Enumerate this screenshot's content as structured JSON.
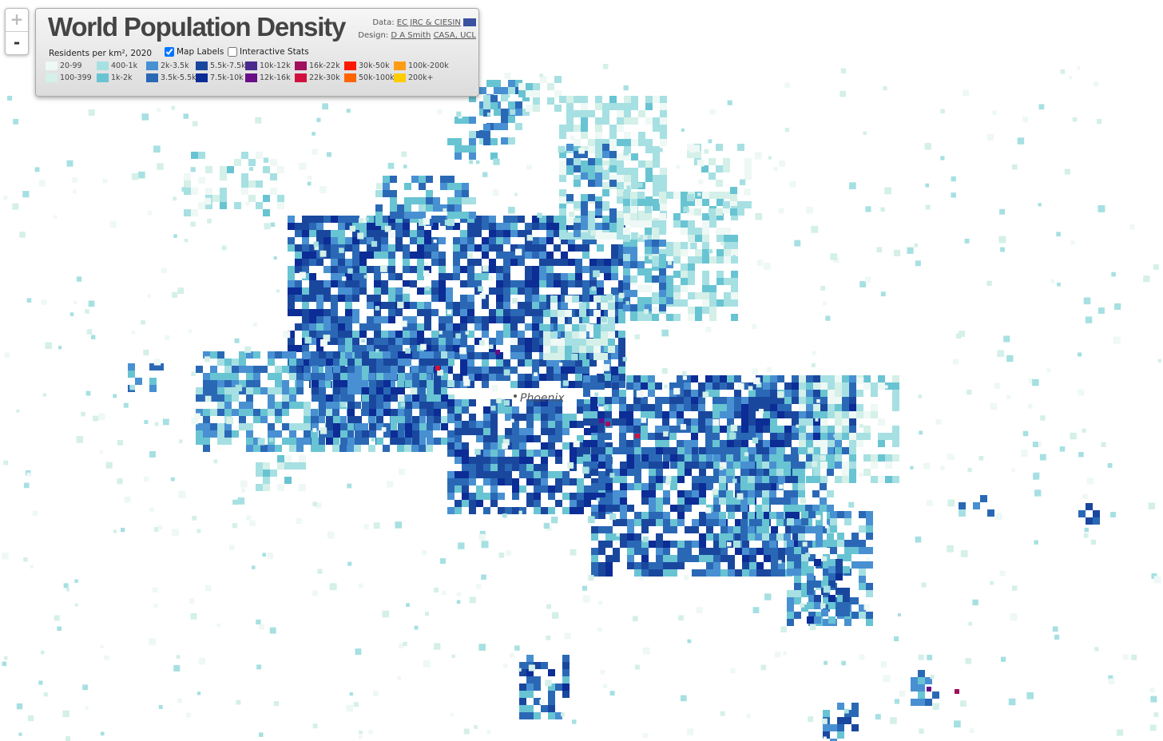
{
  "header": {
    "title": "World Population Density",
    "data_label": "Data:",
    "data_source": "EC JRC & CIESIN",
    "design_label": "Design:",
    "designer": "D A Smith",
    "institution": "CASA, UCL"
  },
  "zoom": {
    "in": "+",
    "out": "-"
  },
  "legend": {
    "caption": "Residents per km², 2020",
    "items": [
      {
        "label": "20-99",
        "color": "#eef8f5"
      },
      {
        "label": "100-399",
        "color": "#d4f0e8"
      },
      {
        "label": "400-1k",
        "color": "#a6e0e2"
      },
      {
        "label": "1k-2k",
        "color": "#68c4d2"
      },
      {
        "label": "2k-3.5k",
        "color": "#4890d2"
      },
      {
        "label": "3.5k-5.5k",
        "color": "#2a68b6"
      },
      {
        "label": "5.5k-7.5k",
        "color": "#1a479e"
      },
      {
        "label": "7.5k-10k",
        "color": "#0c2c96"
      },
      {
        "label": "10k-12k",
        "color": "#4a2a8e"
      },
      {
        "label": "12k-16k",
        "color": "#6a0e88"
      },
      {
        "label": "16k-22k",
        "color": "#a0105c"
      },
      {
        "label": "22k-30k",
        "color": "#d2103e"
      },
      {
        "label": "30k-50k",
        "color": "#ff1800"
      },
      {
        "label": "50k-100k",
        "color": "#ff6400"
      },
      {
        "label": "100k-200k",
        "color": "#ff9c16"
      },
      {
        "label": "200k+",
        "color": "#ffcc00"
      }
    ]
  },
  "options": [
    {
      "label": "Map Labels",
      "checked": true
    },
    {
      "label": "Interactive Stats",
      "checked": false
    }
  ],
  "map_labels": [
    {
      "text": "Phoenix"
    }
  ]
}
